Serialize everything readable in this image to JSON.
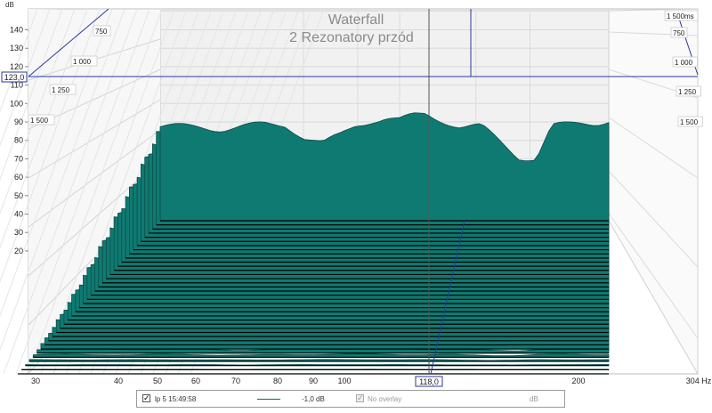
{
  "chart_data": {
    "type": "waterfall",
    "title": "Waterfall",
    "subtitle": "2 Rezonatory przód",
    "y_unit": "dB",
    "x_unit": "Hz",
    "x_scale": "log",
    "xlim": [
      28,
      304
    ],
    "ylim": [
      20,
      145
    ],
    "x_ticks": [
      "30",
      "40",
      "50",
      "60",
      "70",
      "80",
      "90",
      "100",
      "118,0",
      "200",
      "304 Hz"
    ],
    "y_ticks": [
      "140",
      "130",
      "120",
      "110",
      "100",
      "90",
      "80",
      "70",
      "60",
      "50",
      "40",
      "30",
      "20"
    ],
    "time_labels": [
      "750",
      "1 000",
      "1 250",
      "1 500"
    ],
    "time_labels_right": [
      "1 500ms",
      "750",
      "1 000",
      "1 250",
      "1 500"
    ],
    "cursor_y_label": "123,0",
    "cursor_x_label": "118,0",
    "front_slice_frequencies_hz": [
      45,
      48,
      52,
      56,
      60,
      65,
      70,
      75,
      80,
      85,
      90,
      95,
      100,
      105,
      110,
      115,
      120,
      130,
      140,
      150,
      160,
      170,
      180,
      190,
      200,
      210,
      220
    ],
    "front_slice_db": [
      112,
      112,
      112,
      111,
      112,
      113,
      113,
      107,
      104,
      108,
      113,
      115,
      116,
      115,
      117,
      118,
      116,
      112,
      112,
      105,
      98,
      97,
      112,
      113,
      114,
      114,
      115
    ],
    "fill_color": "#0f7a72",
    "grid": true
  },
  "legend": {
    "series_name": "lp 5 15:49:58",
    "smoothing": "-1,0 dB",
    "overlay": "No overlay",
    "unit": "dB"
  }
}
